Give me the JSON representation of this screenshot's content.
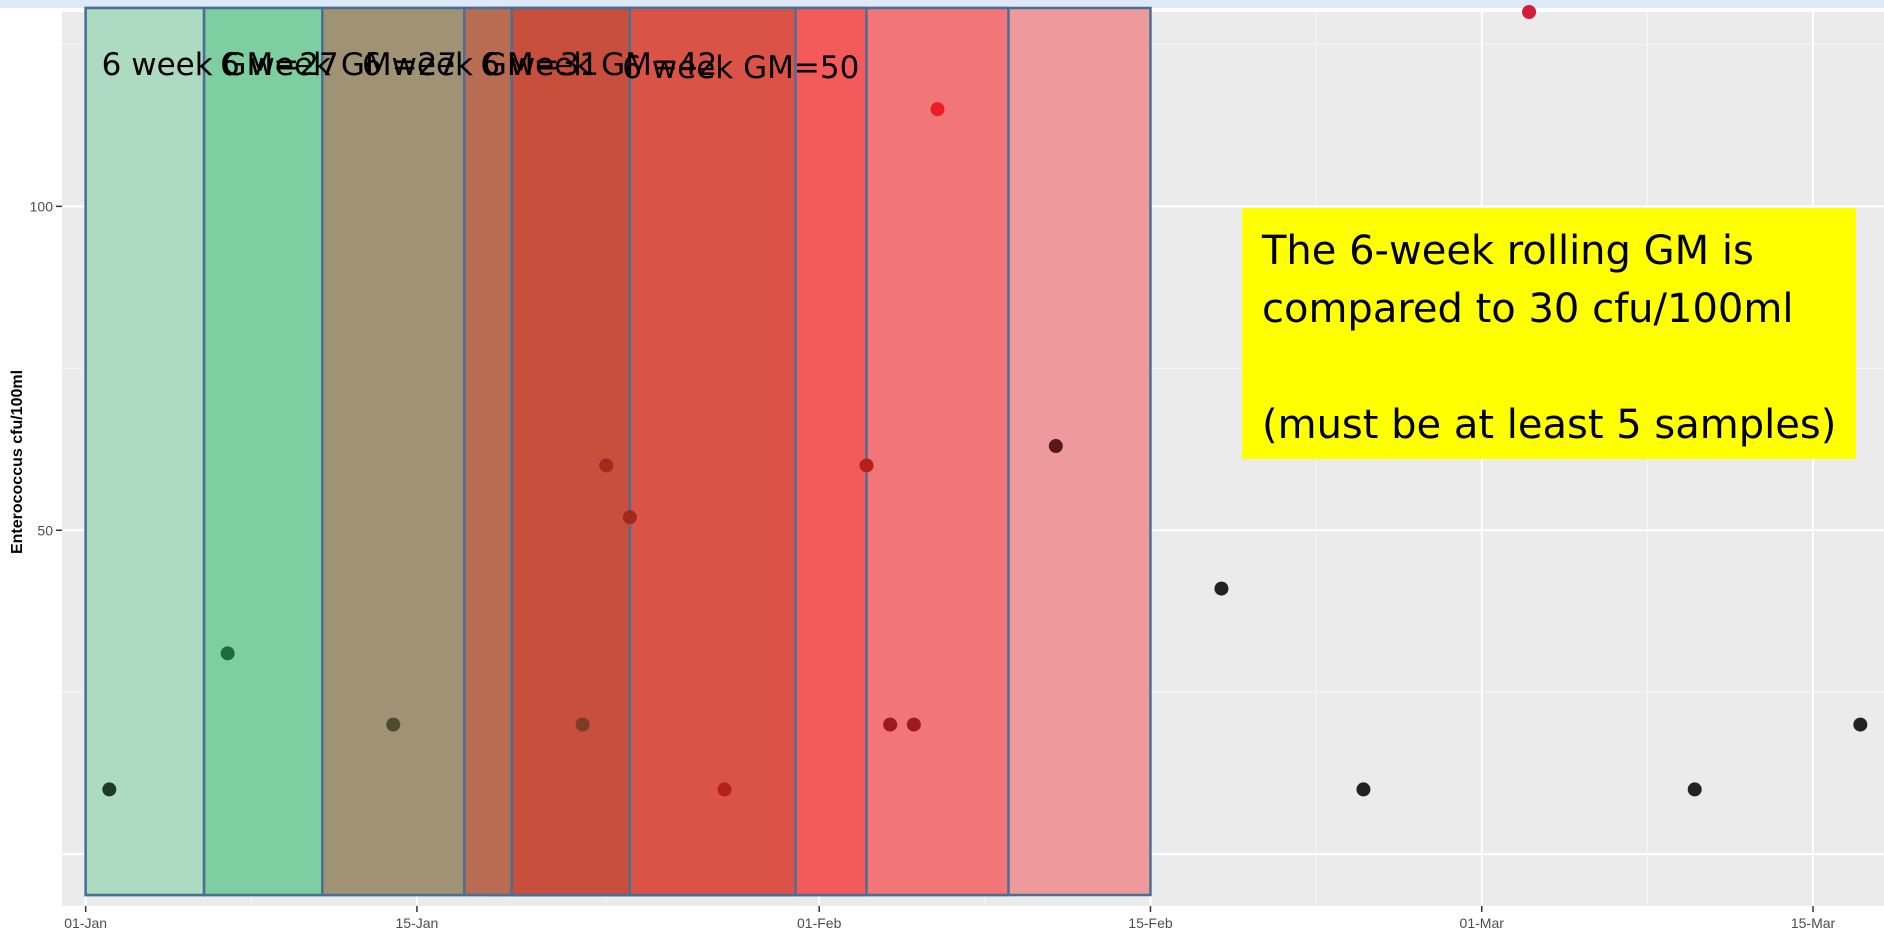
{
  "chart_data": {
    "type": "scatter",
    "ylabel": "Enterococcus cfu/100ml",
    "xlabel": "",
    "x_ticks": [
      "01-Jan",
      "15-Jan",
      "01-Feb",
      "15-Feb",
      "01-Mar",
      "15-Mar"
    ],
    "y_ticks": [
      50,
      100
    ],
    "xlim": [
      "2022-12-31",
      "2023-03-18"
    ],
    "ylim": [
      -8,
      130
    ],
    "grid": true,
    "points": [
      {
        "x": "2023-01-02",
        "y": 10,
        "color": "#1c3a26"
      },
      {
        "x": "2023-01-07",
        "y": 31,
        "color": "#1d6b3e"
      },
      {
        "x": "2023-01-14",
        "y": 20,
        "color": "#4d4a30"
      },
      {
        "x": "2023-01-22",
        "y": 20,
        "color": "#7a3d2a"
      },
      {
        "x": "2023-01-23",
        "y": 60,
        "color": "#a4281c"
      },
      {
        "x": "2023-01-24",
        "y": 52,
        "color": "#a4281c"
      },
      {
        "x": "2023-01-28",
        "y": 10,
        "color": "#b5201c"
      },
      {
        "x": "2023-02-03",
        "y": 60,
        "color": "#b5201c"
      },
      {
        "x": "2023-02-04",
        "y": 20,
        "color": "#a01820"
      },
      {
        "x": "2023-02-05",
        "y": 20,
        "color": "#a01820"
      },
      {
        "x": "2023-02-06",
        "y": 115,
        "color": "#ee1c25"
      },
      {
        "x": "2023-02-11",
        "y": 63,
        "color": "#5a1818"
      },
      {
        "x": "2023-02-18",
        "y": 41,
        "color": "#222222"
      },
      {
        "x": "2023-02-24",
        "y": 10,
        "color": "#222222"
      },
      {
        "x": "2023-03-03",
        "y": 130,
        "color": "#d41c3c"
      },
      {
        "x": "2023-03-10",
        "y": 10,
        "color": "#222222"
      },
      {
        "x": "2023-03-17",
        "y": 20,
        "color": "#222222"
      }
    ],
    "windows": [
      {
        "start": "2023-01-01",
        "end": "2023-02-15",
        "fill": "#ee9a9c"
      },
      {
        "start": "2023-01-24",
        "end": "2023-02-09",
        "fill": "#f27578"
      },
      {
        "start": "2023-01-19",
        "end": "2023-02-03",
        "fill": "#f55a5a"
      },
      {
        "start": "2023-01-19",
        "end": "2023-01-31",
        "fill": "#db5347"
      },
      {
        "start": "2023-01-18",
        "end": "2023-01-24",
        "fill": "#c84f3c"
      },
      {
        "start": "2023-01-17",
        "end": "2023-01-19",
        "fill": "#b86c52"
      },
      {
        "start": "2023-01-11",
        "end": "2023-01-17",
        "fill": "#a09373"
      },
      {
        "start": "2023-01-06",
        "end": "2023-01-11",
        "fill": "#7dcea0"
      },
      {
        "start": "2023-01-01",
        "end": "2023-01-06",
        "fill": "#addbc2"
      }
    ],
    "annotations": [
      {
        "text": "6 week GM=27",
        "x": "2023-01-01",
        "y": 122
      },
      {
        "text": "6 week GM=27",
        "x": "2023-01-06",
        "y": 122
      },
      {
        "text": "6 week GM=31",
        "x": "2023-01-12",
        "y": 122
      },
      {
        "text": "6 week GM=42",
        "x": "2023-01-17",
        "y": 122
      },
      {
        "text": "6 week GM=50",
        "x": "2023-01-23",
        "y": 121.5
      }
    ]
  },
  "note": {
    "line1": "The 6-week rolling GM is",
    "line2": "compared to 30 cfu/100ml",
    "line3": "(must be at least 5 samples)"
  }
}
